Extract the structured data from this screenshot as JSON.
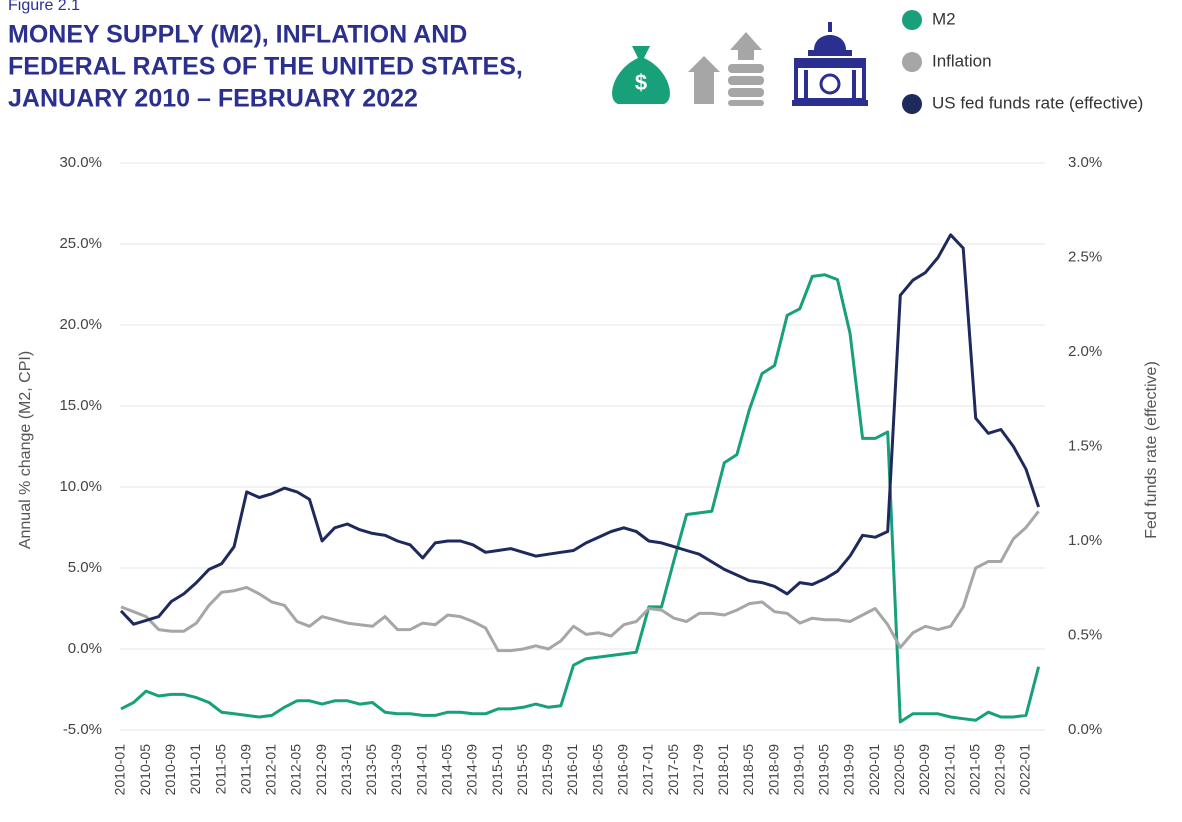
{
  "chart_data": {
    "type": "line",
    "figure_label": "Figure 2.1",
    "title": [
      "MONEY SUPPLY (M2), INFLATION AND",
      "FEDERAL RATES OF THE UNITED STATES,",
      "JANUARY 2010 – FEBRUARY 2022"
    ],
    "y_label": "Annual % change (M2, CPI)",
    "y2_label": "Fed funds rate (effective)",
    "legend": "top-right",
    "grid": true,
    "categories": [
      "2010-01",
      null,
      "2010-05",
      null,
      "2010-09",
      null,
      "2011-01",
      null,
      "2011-05",
      null,
      "2011-09",
      null,
      "2012-01",
      null,
      "2012-05",
      null,
      "2012-09",
      null,
      "2013-01",
      null,
      "2013-05",
      null,
      "2013-09",
      null,
      "2014-01",
      null,
      "2014-05",
      null,
      "2014-09",
      null,
      "2015-01",
      null,
      "2015-05",
      null,
      "2015-09",
      null,
      "2016-01",
      null,
      "2016-05",
      null,
      "2016-09",
      null,
      "2017-01",
      null,
      "2017-05",
      null,
      "2017-09",
      null,
      "2018-01",
      null,
      "2018-05",
      null,
      "2018-09",
      null,
      "2019-01",
      null,
      "2019-05",
      null,
      "2019-09",
      null,
      "2020-01",
      null,
      "2020-05",
      null,
      "2020-09",
      null,
      "2021-01",
      null,
      "2021-05",
      null,
      "2021-09",
      null,
      "2022-01",
      null
    ],
    "ylim": [
      -5,
      30
    ],
    "yticks": [
      {
        "value": -5,
        "label": "-5.0%"
      },
      {
        "value": 0,
        "label": "0.0%"
      },
      {
        "value": 5,
        "label": "5.0%"
      },
      {
        "value": 10,
        "label": "10.0%"
      },
      {
        "value": 15,
        "label": "15.0%"
      },
      {
        "value": 20,
        "label": "20.0%"
      },
      {
        "value": 25,
        "label": "25.0%"
      },
      {
        "value": 30,
        "label": "30.0%"
      }
    ],
    "y2lim": [
      0,
      3
    ],
    "y2ticks": [
      {
        "value": 0,
        "label": "0.0%"
      },
      {
        "value": 0.5,
        "label": "0.5%"
      },
      {
        "value": 1,
        "label": "1.0%"
      },
      {
        "value": 1.5,
        "label": "1.5%"
      },
      {
        "value": 2,
        "label": "2.0%"
      },
      {
        "value": 2.5,
        "label": "2.5%"
      },
      {
        "value": 3,
        "label": "3.0%"
      }
    ],
    "series": [
      {
        "name": "M2",
        "color": "#17a07a",
        "values": [
          -3.7,
          -3.3,
          -2.6,
          -2.9,
          -2.8,
          -2.8,
          -3.0,
          -3.3,
          -3.9,
          -4.0,
          -4.1,
          -4.2,
          -4.1,
          -3.6,
          -3.2,
          -3.2,
          -3.4,
          -3.2,
          -3.2,
          -3.4,
          -3.3,
          -3.9,
          -4.0,
          -4.0,
          -4.1,
          -4.1,
          -3.9,
          -3.9,
          -4.0,
          -4.0,
          -3.7,
          -3.7,
          -3.6,
          -3.4,
          -3.6,
          -3.5,
          -1.0,
          -0.6,
          -0.5,
          -0.4,
          -0.3,
          -0.2,
          2.6,
          2.6,
          5.5,
          8.3,
          8.4,
          8.5,
          11.5,
          12.0,
          14.8,
          17.0,
          17.5,
          20.6,
          21.0,
          23.0,
          23.1,
          22.8,
          19.5,
          13.0,
          13.0,
          13.4,
          -4.5,
          -4.0,
          -4.0,
          -4.0,
          -4.2,
          -4.3,
          -4.4,
          -3.9,
          -4.2,
          -4.2,
          -4.1,
          -1.1
        ]
      },
      {
        "name": "Inflation",
        "color": "#a6a6a6",
        "values": [
          2.6,
          2.3,
          2.0,
          1.2,
          1.1,
          1.1,
          1.6,
          2.7,
          3.5,
          3.6,
          3.8,
          3.4,
          2.9,
          2.7,
          1.7,
          1.4,
          2.0,
          1.8,
          1.6,
          1.5,
          1.4,
          2.0,
          1.2,
          1.2,
          1.6,
          1.5,
          2.1,
          2.0,
          1.7,
          1.3,
          -0.1,
          -0.1,
          0.0,
          0.2,
          0.0,
          0.5,
          1.4,
          0.9,
          1.0,
          0.8,
          1.5,
          1.7,
          2.5,
          2.4,
          1.9,
          1.7,
          2.2,
          2.2,
          2.1,
          2.4,
          2.8,
          2.9,
          2.3,
          2.2,
          1.6,
          1.9,
          1.8,
          1.8,
          1.7,
          2.1,
          2.5,
          1.5,
          0.1,
          1.0,
          1.4,
          1.2,
          1.4,
          2.6,
          5.0,
          5.4,
          5.4,
          6.8,
          7.5,
          8.5
        ]
      },
      {
        "name": "US fed funds rate (effective)",
        "color": "#1f2a5c",
        "axis": "y2",
        "values": [
          0.63,
          0.56,
          0.58,
          0.6,
          0.68,
          0.72,
          0.78,
          0.85,
          0.88,
          0.97,
          1.26,
          1.23,
          1.25,
          1.28,
          1.26,
          1.22,
          1.0,
          1.07,
          1.09,
          1.06,
          1.04,
          1.03,
          1.0,
          0.98,
          0.91,
          0.99,
          1.0,
          1.0,
          0.98,
          0.94,
          0.95,
          0.96,
          0.94,
          0.92,
          0.93,
          0.94,
          0.95,
          0.99,
          1.02,
          1.05,
          1.07,
          1.05,
          1.0,
          0.99,
          0.97,
          0.95,
          0.93,
          0.89,
          0.85,
          0.82,
          0.79,
          0.78,
          0.76,
          0.72,
          0.78,
          0.77,
          0.8,
          0.84,
          0.92,
          1.03,
          1.02,
          1.05,
          2.3,
          2.38,
          2.42,
          2.5,
          2.62,
          2.55,
          1.65,
          1.57,
          1.59,
          1.5,
          1.38,
          1.18
        ]
      }
    ]
  }
}
